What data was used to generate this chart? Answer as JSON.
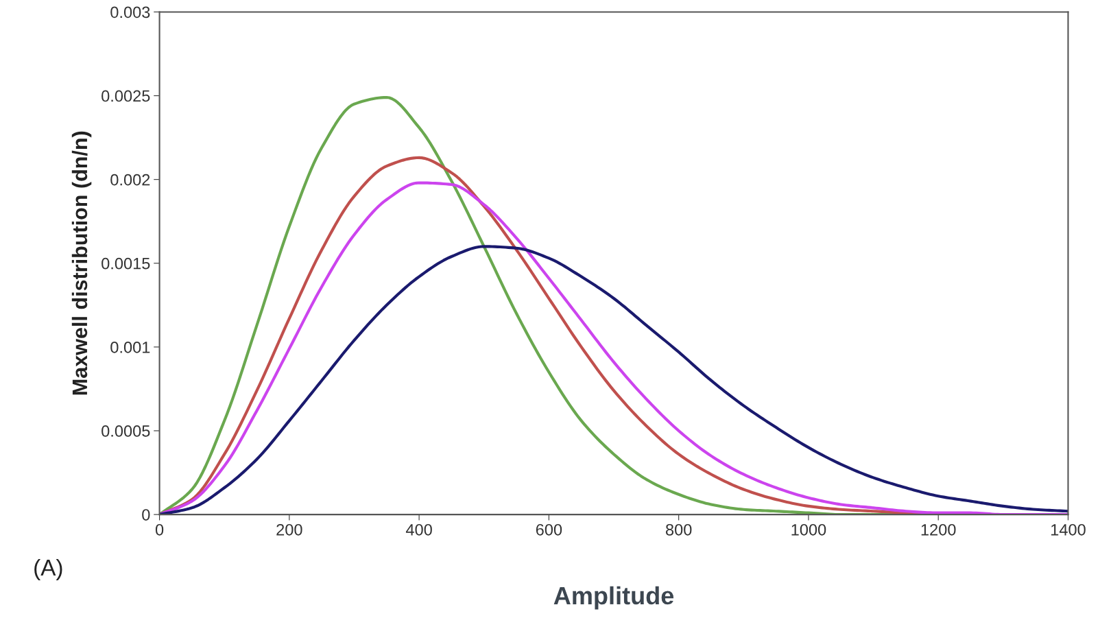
{
  "chart_data": {
    "type": "line",
    "xlabel": "Amplitude",
    "ylabel": "Maxwell distribution (dn/n)",
    "x": [
      0,
      50,
      100,
      150,
      200,
      250,
      300,
      350,
      400,
      450,
      500,
      550,
      600,
      650,
      700,
      750,
      800,
      850,
      900,
      950,
      1000,
      1050,
      1100,
      1150,
      1200,
      1250,
      1300,
      1350,
      1400
    ],
    "series": [
      {
        "color": "#6aa84f",
        "values": [
          0,
          0.00015,
          0.00056,
          0.00113,
          0.00172,
          0.00219,
          0.00245,
          0.00249,
          0.00231,
          0.00199,
          0.0016,
          0.0012,
          0.00085,
          0.00056,
          0.00036,
          0.00021,
          0.00012,
          6e-05,
          3e-05,
          2e-05,
          1e-05,
          0,
          0,
          0,
          null,
          null,
          null,
          null,
          null
        ]
      },
      {
        "color": "#c0504d",
        "values": [
          0,
          9e-05,
          0.00036,
          0.00074,
          0.00117,
          0.00158,
          0.0019,
          0.00208,
          0.00213,
          0.00204,
          0.00184,
          0.00158,
          0.00129,
          0.001,
          0.00074,
          0.00053,
          0.00036,
          0.00024,
          0.00015,
          9e-05,
          5e-05,
          3e-05,
          2e-05,
          1e-05,
          0,
          0,
          null,
          null,
          null
        ]
      },
      {
        "color": "#cc44ee",
        "values": [
          0,
          8e-05,
          0.00029,
          0.00062,
          0.00099,
          0.00136,
          0.00167,
          0.00188,
          0.00198,
          0.00197,
          0.00185,
          0.00165,
          0.00141,
          0.00116,
          0.00091,
          0.00069,
          0.0005,
          0.00035,
          0.00024,
          0.00016,
          0.0001,
          6e-05,
          4e-05,
          2e-05,
          1e-05,
          1e-05,
          0,
          0,
          0
        ]
      },
      {
        "color": "#1a1a6e",
        "values": [
          0,
          4e-05,
          0.00016,
          0.00033,
          0.00056,
          0.0008,
          0.00104,
          0.00125,
          0.00142,
          0.00154,
          0.0016,
          0.00159,
          0.00153,
          0.00142,
          0.00129,
          0.00113,
          0.00097,
          0.0008,
          0.00065,
          0.00052,
          0.0004,
          0.0003,
          0.00022,
          0.00016,
          0.00011,
          8e-05,
          5e-05,
          3e-05,
          2e-05
        ]
      }
    ],
    "xlim": [
      0,
      1400
    ],
    "xticks": [
      0,
      200,
      400,
      600,
      800,
      1000,
      1200,
      1400
    ],
    "ylim": [
      0,
      0.003
    ],
    "yticks": [
      0,
      0.0005,
      0.001,
      0.0015,
      0.002,
      0.0025,
      0.003
    ],
    "annotations": [
      "(A)"
    ],
    "grid": false,
    "legend": false
  }
}
